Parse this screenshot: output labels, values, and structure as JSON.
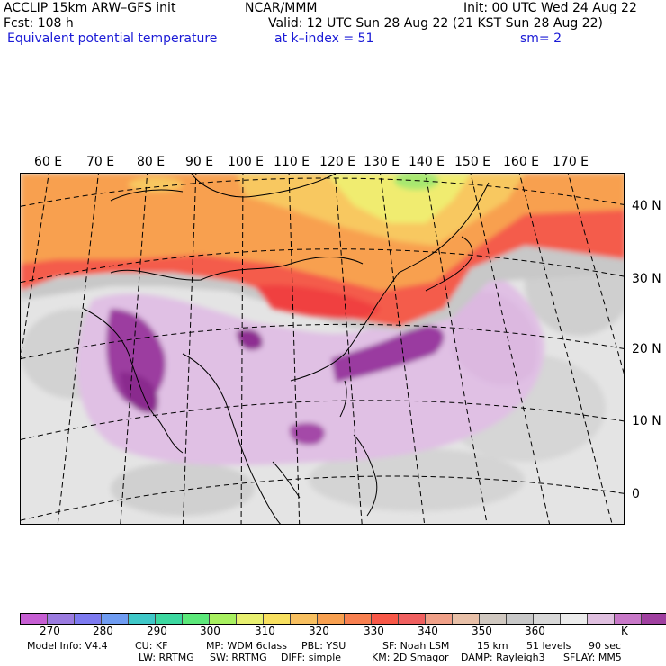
{
  "header": {
    "model_line": "ACCLIP 15km ARW–GFS init",
    "org": "NCAR/MMM",
    "init": "Init: 00 UTC Wed 24 Aug 22",
    "fcst": "Fcst:  108 h",
    "valid": "Valid: 12 UTC Sun 28 Aug 22 (21 KST Sun 28 Aug 22)",
    "field": "Equivalent potential temperature",
    "level": "at k–index =  51",
    "smoothing": "sm= 2"
  },
  "map": {
    "lon_labels": [
      "60 E",
      "70 E",
      "80 E",
      "90 E",
      "100 E",
      "110 E",
      "120 E",
      "130 E",
      "140 E",
      "150 E",
      "160 E",
      "170 E"
    ],
    "lat_labels": [
      "40 N",
      "30 N",
      "20 N",
      "10 N",
      "0"
    ]
  },
  "colorbar": {
    "colors": [
      "#c65ed3",
      "#9b7be0",
      "#7d7af0",
      "#6f9cf2",
      "#3fc8c8",
      "#3cd8a0",
      "#5ce87a",
      "#a8f060",
      "#e8f070",
      "#f8e060",
      "#f8c060",
      "#f8a050",
      "#f88050",
      "#f85848",
      "#f06060",
      "#f0a088",
      "#e8c0a8",
      "#d0c8c0",
      "#c8c8c8",
      "#d8d8d8",
      "#ececec",
      "#e0c0e0",
      "#c878c8",
      "#a040a0",
      "#7a0a7a"
    ],
    "labels": [
      "270",
      "280",
      "290",
      "300",
      "310",
      "320",
      "330",
      "340",
      "350",
      "360"
    ],
    "unit": "K"
  },
  "footer": {
    "line1": [
      "Model Info: V4.4",
      "CU: KF",
      "MP: WDM 6class",
      "PBL: YSU",
      "SF: Noah LSM",
      "15 km",
      "51 levels",
      "90 sec"
    ],
    "line2": [
      "LW: RRTMG",
      "SW: RRTMG",
      "DIFF: simple",
      "KM: 2D Smagor",
      "DAMP: Rayleigh3",
      "SFLAY: MM5"
    ]
  }
}
